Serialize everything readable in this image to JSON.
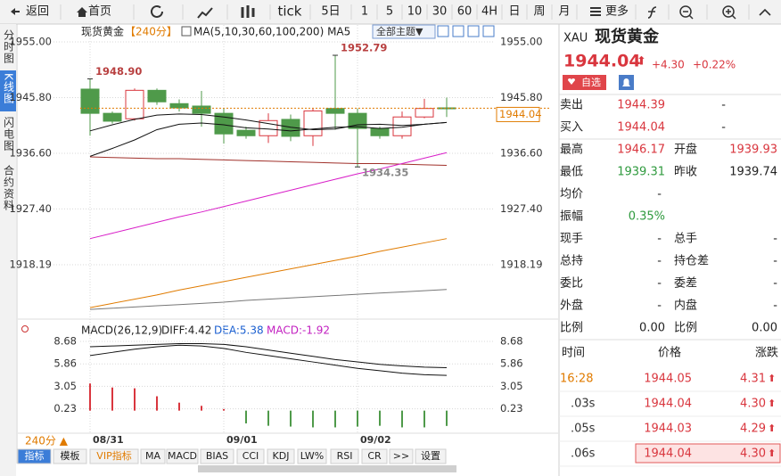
{
  "toolbar": [
    "返回",
    "首页",
    "tick",
    "5日",
    "1",
    "5",
    "10",
    "30",
    "60",
    "4H",
    "日",
    "周",
    "月",
    "更多"
  ],
  "side_tabs": [
    "分时图",
    "K线图",
    "闪电图",
    "合约资料"
  ],
  "chart_header": {
    "name": "现货黄金",
    "period": "【240分】",
    "indicator": "MA(5,10,30,60,100,200) MA5",
    "theme": "全部主题▼"
  },
  "chart_data": [
    {
      "type": "candlestick",
      "categories": [
        "08/31",
        null,
        null,
        null,
        null,
        null,
        "09/01",
        null,
        null,
        null,
        null,
        null,
        "09/02",
        null,
        null,
        null,
        null
      ],
      "open": [
        1947.2,
        1943.2,
        1942.3,
        1947.0,
        1944.8,
        1944.4,
        1943.2,
        1940.4,
        1939.5,
        1942.2,
        1939.5,
        1944.0,
        1943.2,
        1940.7,
        1939.5,
        1942.6,
        1944.1
      ],
      "high": [
        1948.9,
        1943.5,
        1947.3,
        1947.3,
        1945.5,
        1946.9,
        1944.0,
        1941.0,
        1943.2,
        1943.0,
        1944.0,
        1952.79,
        1944.0,
        1941.0,
        1943.5,
        1945.6,
        1945.8
      ],
      "low": [
        1939.5,
        1941.5,
        1942.0,
        1944.6,
        1943.5,
        1941.0,
        1938.2,
        1939.0,
        1938.3,
        1938.6,
        1937.8,
        1940.5,
        1934.35,
        1939.0,
        1939.0,
        1942.4,
        1942.6
      ],
      "close": [
        1943.2,
        1941.9,
        1947.0,
        1945.1,
        1944.1,
        1943.2,
        1939.8,
        1939.5,
        1942.0,
        1939.4,
        1943.6,
        1943.2,
        1940.7,
        1939.5,
        1942.6,
        1944.0,
        1944.0
      ],
      "up_color": "#d9363e",
      "down_color": "#4f9a4a",
      "lines": [
        {
          "color": "#111111",
          "values": [
            1936.1,
            1937.4,
            1938.8,
            1940.5,
            1941.4,
            1941.6,
            1941.3,
            1940.8,
            1940.6,
            1940.3,
            1940.6,
            1940.9,
            1941.0,
            1940.7,
            1940.9,
            1941.4,
            1941.7
          ]
        },
        {
          "color": "#111111",
          "values": [
            1940.3,
            1941.3,
            1942.2,
            1942.9,
            1943.1,
            1943.0,
            1942.6,
            1942.1,
            1941.5,
            1940.9,
            1940.5,
            1940.6,
            1941.3,
            1941.4,
            1941.2,
            1941.4,
            1941.7
          ]
        },
        {
          "color": "#a0302a",
          "values": [
            1936.0,
            1935.9,
            1935.8,
            1935.7,
            1935.7,
            1935.6,
            1935.5,
            1935.4,
            1935.3,
            1935.2,
            1935.1,
            1935.0,
            1934.9,
            1934.9,
            1934.8,
            1934.7,
            1934.6
          ]
        },
        {
          "color": "#d81ec8",
          "values": [
            1922.5,
            1923.4,
            1924.3,
            1925.2,
            1926.1,
            1926.9,
            1927.8,
            1928.7,
            1929.6,
            1930.5,
            1931.4,
            1932.3,
            1933.2,
            1934.0,
            1934.9,
            1935.8,
            1936.7
          ]
        },
        {
          "color": "#e07b00",
          "values": [
            1911.1,
            1911.8,
            1912.5,
            1913.2,
            1914.0,
            1914.7,
            1915.4,
            1916.1,
            1916.8,
            1917.5,
            1918.2,
            1918.9,
            1919.6,
            1920.4,
            1921.1,
            1921.8,
            1922.5
          ]
        },
        {
          "color": "#777777",
          "values": [
            1910.8,
            1911.0,
            1911.2,
            1911.4,
            1911.6,
            1911.8,
            1912.0,
            1912.3,
            1912.5,
            1912.7,
            1912.9,
            1913.1,
            1913.3,
            1913.5,
            1913.7,
            1913.9,
            1914.1
          ]
        }
      ],
      "ylim": [
        1909.2,
        1957.8
      ],
      "yticks": [
        {
          "value": 1955,
          "label": "1955.00"
        },
        {
          "value": 1945.8,
          "label": "1945.80"
        },
        {
          "value": 1936.6,
          "label": "1936.60"
        },
        {
          "value": 1927.4,
          "label": "1927.40"
        },
        {
          "value": 1918.19,
          "label": "1918.19"
        }
      ],
      "last_price": 1944.04,
      "annotations": [
        {
          "index": 0,
          "label": "1948.90"
        },
        {
          "index": 11,
          "label": "1952.79"
        },
        {
          "index": 12,
          "label": "1934.35"
        }
      ]
    },
    {
      "type": "macd",
      "title": "MACD(26,12,9)",
      "diff_label": "DIFF:4.42",
      "dea_label": "DEA:5.38",
      "macd_label": "MACD:-1.92",
      "diff": [
        6.9,
        7.3,
        7.7,
        8.0,
        8.2,
        8.1,
        7.8,
        7.3,
        6.9,
        6.5,
        6.1,
        5.7,
        5.3,
        5.0,
        4.7,
        4.5,
        4.42
      ],
      "dea": [
        8.0,
        8.1,
        8.2,
        8.3,
        8.4,
        8.4,
        8.3,
        8.0,
        7.6,
        7.2,
        6.8,
        6.4,
        6.1,
        5.8,
        5.6,
        5.45,
        5.38
      ],
      "macd": [
        3.4,
        2.9,
        2.8,
        1.8,
        1.0,
        0.6,
        0.2,
        -1.6,
        -1.9,
        -2.0,
        -2.1,
        -2.1,
        -2.0,
        -1.9,
        -2.1,
        -2.1,
        -1.92
      ],
      "ylim": [
        -2.72,
        9.57
      ],
      "yticks": [
        8.68,
        5.86,
        3.05,
        0.23
      ]
    }
  ],
  "period_selector": "240分 ▲",
  "bottom_tabs": [
    "指标",
    "模板",
    "VIP指标",
    "MA",
    "MACD",
    "BIAS",
    "CCI",
    "KDJ",
    "LW%",
    "RSI",
    "CR",
    ">>",
    "设置"
  ],
  "quote": {
    "code": "XAU",
    "name": "现货黄金",
    "price": "1944.04",
    "arrow": "⬆",
    "change": "+4.30",
    "change_pct": "+0.22%",
    "watch": "自选",
    "rows": [
      [
        [
          "卖出",
          "1944.39"
        ],
        [
          "",
          "-"
        ]
      ],
      [
        [
          "买入",
          "1944.04"
        ],
        [
          "",
          "-"
        ]
      ],
      [
        [
          "最高",
          "1946.17"
        ],
        [
          "开盘",
          "1939.93"
        ]
      ],
      [
        [
          "最低",
          "1939.31"
        ],
        [
          "昨收",
          "1939.74"
        ]
      ],
      [
        [
          "均价",
          "-"
        ],
        [
          "",
          ""
        ]
      ],
      [
        [
          "振幅",
          "0.35%"
        ],
        [
          "",
          ""
        ]
      ],
      [
        [
          "现手",
          "-"
        ],
        [
          "总手",
          "-"
        ]
      ],
      [
        [
          "总持",
          "-"
        ],
        [
          "持仓差",
          "-"
        ]
      ],
      [
        [
          "委比",
          "-"
        ],
        [
          "委差",
          "-"
        ]
      ],
      [
        [
          "外盘",
          "-"
        ],
        [
          "内盘",
          "-"
        ]
      ],
      [
        [
          "比例",
          "0.00"
        ],
        [
          "比例",
          "0.00"
        ]
      ]
    ],
    "ticks_header": [
      "时间",
      "价格",
      "涨跌"
    ],
    "ticks": [
      [
        "16:28",
        "1944.05",
        "4.31"
      ],
      [
        ".03s",
        "1944.04",
        "4.30"
      ],
      [
        ".05s",
        "1944.03",
        "4.29"
      ],
      [
        ".06s",
        "1944.04",
        "4.30"
      ]
    ],
    "tick_arrow": "⬆"
  }
}
